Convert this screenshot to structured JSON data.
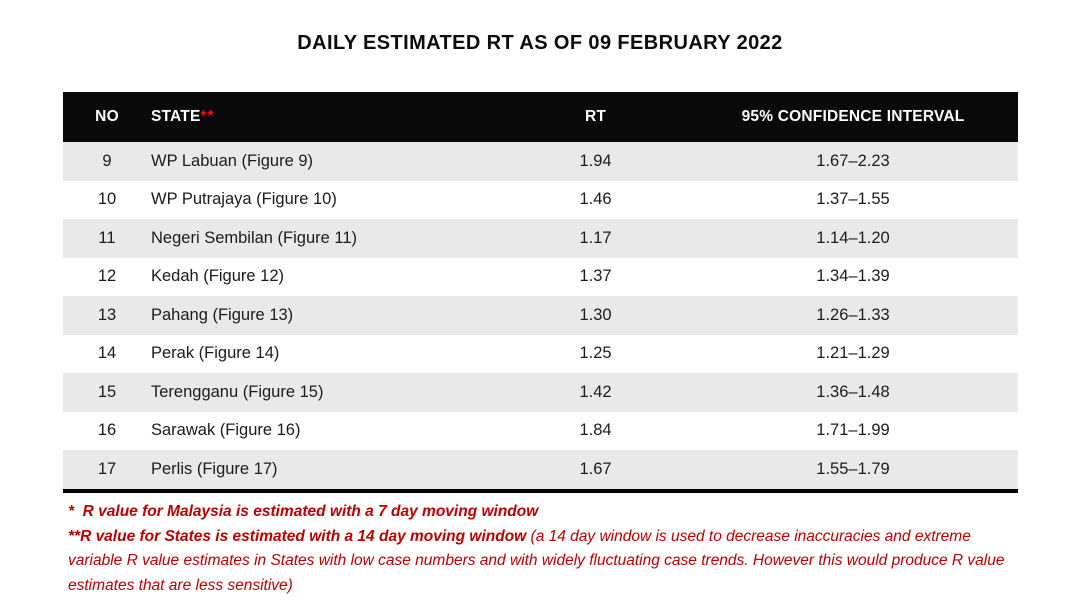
{
  "title": "DAILY ESTIMATED RT AS OF 09 FEBRUARY 2022",
  "table": {
    "columns": [
      "NO",
      "STATE",
      "RT",
      "95% CONFIDENCE INTERVAL"
    ],
    "header_asterisks": "**",
    "rows": [
      {
        "no": "9",
        "state": "WP Labuan (Figure 9)",
        "rt": "1.94",
        "ci": "1.67–2.23"
      },
      {
        "no": "10",
        "state": "WP Putrajaya (Figure 10)",
        "rt": "1.46",
        "ci": "1.37–1.55"
      },
      {
        "no": "11",
        "state": "Negeri Sembilan (Figure 11)",
        "rt": "1.17",
        "ci": "1.14–1.20"
      },
      {
        "no": "12",
        "state": "Kedah (Figure 12)",
        "rt": "1.37",
        "ci": "1.34–1.39"
      },
      {
        "no": "13",
        "state": "Pahang (Figure 13)",
        "rt": "1.30",
        "ci": "1.26–1.33"
      },
      {
        "no": "14",
        "state": "Perak (Figure 14)",
        "rt": "1.25",
        "ci": "1.21–1.29"
      },
      {
        "no": "15",
        "state": "Terengganu (Figure 15)",
        "rt": "1.42",
        "ci": "1.36–1.48"
      },
      {
        "no": "16",
        "state": "Sarawak (Figure 16)",
        "rt": "1.84",
        "ci": "1.71–1.99"
      },
      {
        "no": "17",
        "state": "Perlis (Figure 17)",
        "rt": "1.67",
        "ci": "1.55–1.79"
      }
    ]
  },
  "footnotes": {
    "note1": "*  R value for Malaysia is estimated with a 7 day moving window",
    "note2_bold": "**R value for States is estimated with a 14 day moving window ",
    "note2_regular": "(a 14 day window is used to decrease inaccuracies and extreme variable R value estimates in States with low case numbers and with widely fluctuating case trends. However this would produce R value estimates that are less sensitive)"
  },
  "colors": {
    "header_bg": "#0a0a0a",
    "header_text": "#ffffff",
    "stripe_gray": "#e9e9e9",
    "asterisk_red": "#e8100c",
    "footnote_red": "#c00000"
  },
  "chart_data": {
    "type": "table",
    "title": "DAILY ESTIMATED RT AS OF 09 FEBRUARY 2022",
    "columns": [
      "NO",
      "STATE",
      "RT",
      "95% CONFIDENCE INTERVAL"
    ],
    "categories": [
      "WP Labuan",
      "WP Putrajaya",
      "Negeri Sembilan",
      "Kedah",
      "Pahang",
      "Perak",
      "Terengganu",
      "Sarawak",
      "Perlis"
    ],
    "series": [
      {
        "name": "RT",
        "values": [
          1.94,
          1.46,
          1.17,
          1.37,
          1.3,
          1.25,
          1.42,
          1.84,
          1.67
        ]
      },
      {
        "name": "CI lower",
        "values": [
          1.67,
          1.37,
          1.14,
          1.34,
          1.26,
          1.21,
          1.36,
          1.71,
          1.55
        ]
      },
      {
        "name": "CI upper",
        "values": [
          2.23,
          1.55,
          1.2,
          1.39,
          1.33,
          1.29,
          1.48,
          1.99,
          1.79
        ]
      }
    ]
  }
}
